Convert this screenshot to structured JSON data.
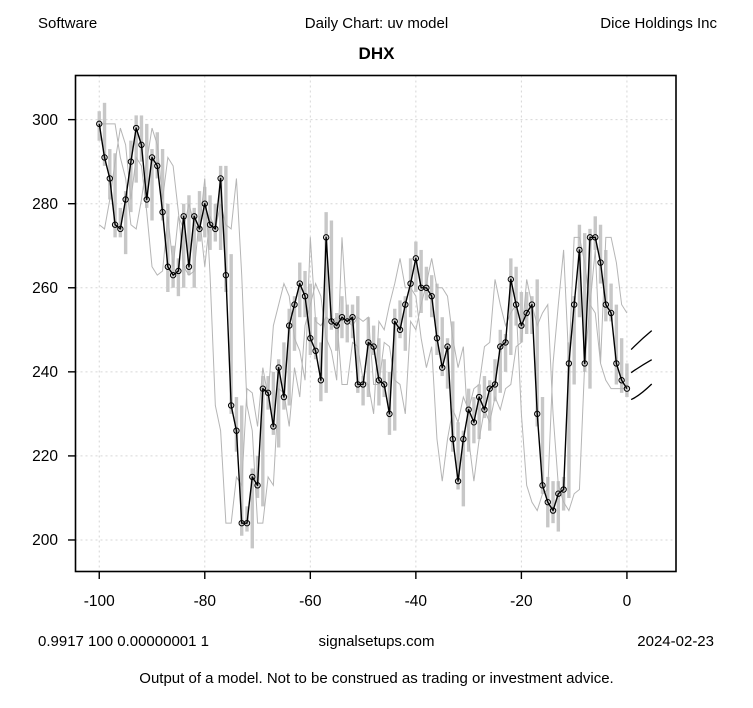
{
  "header": {
    "left": "Software",
    "center": "Daily Chart: uv model",
    "right": "Dice Holdings Inc"
  },
  "title": "DHX",
  "footer_row": {
    "left": "0.9917 100 0.00000001 1",
    "center": "signalsetups.com",
    "right": "2024-02-23"
  },
  "disclaimer": "Output of a model.  Not to be construed as trading or investment advice.",
  "colors": {
    "background": "#ffffff",
    "close_line": "#000000",
    "marker": "#000000",
    "hl_bar": "#c7c7c7",
    "model_line": "#b5b5b5",
    "grid": "#d6d6d6",
    "axis": "#000000",
    "forecast_dash": "#000000"
  },
  "chart_data": {
    "type": "line",
    "title": "DHX",
    "xlabel": "",
    "ylabel": "",
    "grid": true,
    "legend": "none",
    "xlim": [
      -104.5,
      9.3
    ],
    "ylim": [
      192.5,
      310.5
    ],
    "x_ticks": [
      -100,
      -80,
      -60,
      -40,
      -20,
      0
    ],
    "y_ticks": [
      200,
      220,
      240,
      260,
      280,
      300
    ],
    "x_start": -100,
    "x_step": 1,
    "close": [
      299,
      291,
      286,
      275,
      274,
      281,
      290,
      298,
      294,
      281,
      291,
      289,
      278,
      265,
      263,
      264,
      277,
      265,
      277,
      274,
      280,
      275,
      274,
      286,
      263,
      232,
      226,
      204,
      204,
      215,
      213,
      236,
      235,
      227,
      241,
      234,
      251,
      256,
      261,
      258,
      248,
      245,
      238,
      272,
      252,
      251,
      253,
      252,
      253,
      237,
      237,
      247,
      246,
      238,
      237,
      230,
      252,
      250,
      256,
      261,
      267,
      260,
      260,
      258,
      248,
      241,
      246,
      224,
      214,
      224,
      231,
      228,
      234,
      231,
      236,
      237,
      246,
      247,
      262,
      256,
      251,
      254,
      256,
      230,
      213,
      209,
      207,
      211,
      212,
      242,
      256,
      269,
      242,
      272,
      272,
      266,
      256,
      254,
      242,
      238,
      236
    ],
    "bar_high": [
      302,
      304,
      293,
      292,
      279,
      283,
      295,
      301,
      301,
      299,
      293,
      297,
      293,
      280,
      270,
      267,
      280,
      282,
      279,
      283,
      284,
      282,
      280,
      289,
      289,
      268,
      234,
      232,
      208,
      217,
      220,
      239,
      239,
      240,
      243,
      247,
      255,
      258,
      266,
      264,
      261,
      253,
      247,
      278,
      276,
      254,
      258,
      256,
      256,
      258,
      239,
      253,
      251,
      248,
      243,
      240,
      255,
      257,
      258,
      267,
      271,
      269,
      265,
      263,
      261,
      253,
      248,
      252,
      228,
      226,
      236,
      234,
      237,
      239,
      238,
      243,
      250,
      249,
      267,
      265,
      259,
      259,
      258,
      262,
      234,
      215,
      214,
      214,
      215,
      247,
      258,
      275,
      273,
      274,
      277,
      275,
      269,
      261,
      256,
      248,
      242
    ],
    "bar_low": [
      295,
      289,
      281,
      272,
      272,
      268,
      278,
      285,
      290,
      279,
      276,
      286,
      276,
      259,
      260,
      258,
      260,
      263,
      260,
      271,
      272,
      269,
      271,
      269,
      259,
      230,
      221,
      201,
      202,
      198,
      210,
      208,
      231,
      225,
      222,
      231,
      232,
      245,
      253,
      253,
      244,
      243,
      233,
      235,
      250,
      245,
      248,
      247,
      248,
      235,
      232,
      234,
      244,
      232,
      234,
      225,
      226,
      248,
      245,
      253,
      259,
      254,
      257,
      253,
      244,
      239,
      236,
      221,
      212,
      208,
      221,
      223,
      224,
      229,
      226,
      233,
      235,
      240,
      244,
      251,
      247,
      249,
      249,
      227,
      211,
      203,
      204,
      202,
      207,
      210,
      237,
      253,
      240,
      236,
      269,
      261,
      252,
      252,
      237,
      235,
      234
    ],
    "model_lead": [
      275,
      274,
      281,
      290,
      298,
      294,
      281,
      291,
      289,
      278,
      265,
      263,
      264,
      277,
      265,
      277,
      274,
      280,
      275,
      274,
      286,
      263,
      232,
      226,
      204,
      204,
      215,
      213,
      236,
      235,
      227,
      241,
      234,
      251,
      256,
      261,
      258,
      248,
      245,
      238,
      272,
      252,
      251,
      253,
      252,
      253,
      237,
      237,
      247,
      246,
      238,
      237,
      230,
      252,
      250,
      256,
      261,
      267,
      260,
      260,
      258,
      248,
      241,
      246,
      224,
      214,
      224,
      231,
      228,
      234,
      231,
      236,
      237,
      246,
      247,
      262,
      256,
      251,
      254,
      256,
      230,
      213,
      209,
      207,
      211,
      212,
      242,
      256,
      269,
      242,
      272,
      272,
      266,
      256,
      254,
      242,
      238,
      236,
      236,
      236,
      236
    ],
    "model_lag": [
      299,
      299,
      299,
      299,
      291,
      286,
      275,
      274,
      281,
      290,
      298,
      294,
      281,
      291,
      289,
      278,
      265,
      263,
      264,
      277,
      265,
      277,
      274,
      280,
      275,
      274,
      286,
      263,
      232,
      226,
      204,
      204,
      215,
      213,
      236,
      235,
      227,
      241,
      234,
      251,
      256,
      261,
      258,
      248,
      245,
      238,
      272,
      252,
      251,
      253,
      252,
      253,
      237,
      237,
      247,
      246,
      238,
      237,
      230,
      252,
      250,
      256,
      261,
      267,
      260,
      260,
      258,
      248,
      241,
      246,
      224,
      214,
      224,
      231,
      228,
      234,
      231,
      236,
      237,
      246,
      247,
      262,
      256,
      251,
      254,
      256,
      230,
      213,
      209,
      207,
      211,
      212,
      242,
      256,
      269,
      242,
      272,
      272,
      266,
      256,
      254
    ],
    "forecast_dashes": [
      [
        [
          0.8,
          245.3
        ],
        [
          2.6,
          247.6
        ],
        [
          4.7,
          249.8
        ]
      ],
      [
        [
          0.8,
          239.8
        ],
        [
          2.6,
          241.4
        ],
        [
          4.7,
          242.9
        ]
      ],
      [
        [
          0.8,
          233.4
        ],
        [
          2.4,
          234.3
        ],
        [
          4.7,
          237.1
        ]
      ]
    ]
  }
}
